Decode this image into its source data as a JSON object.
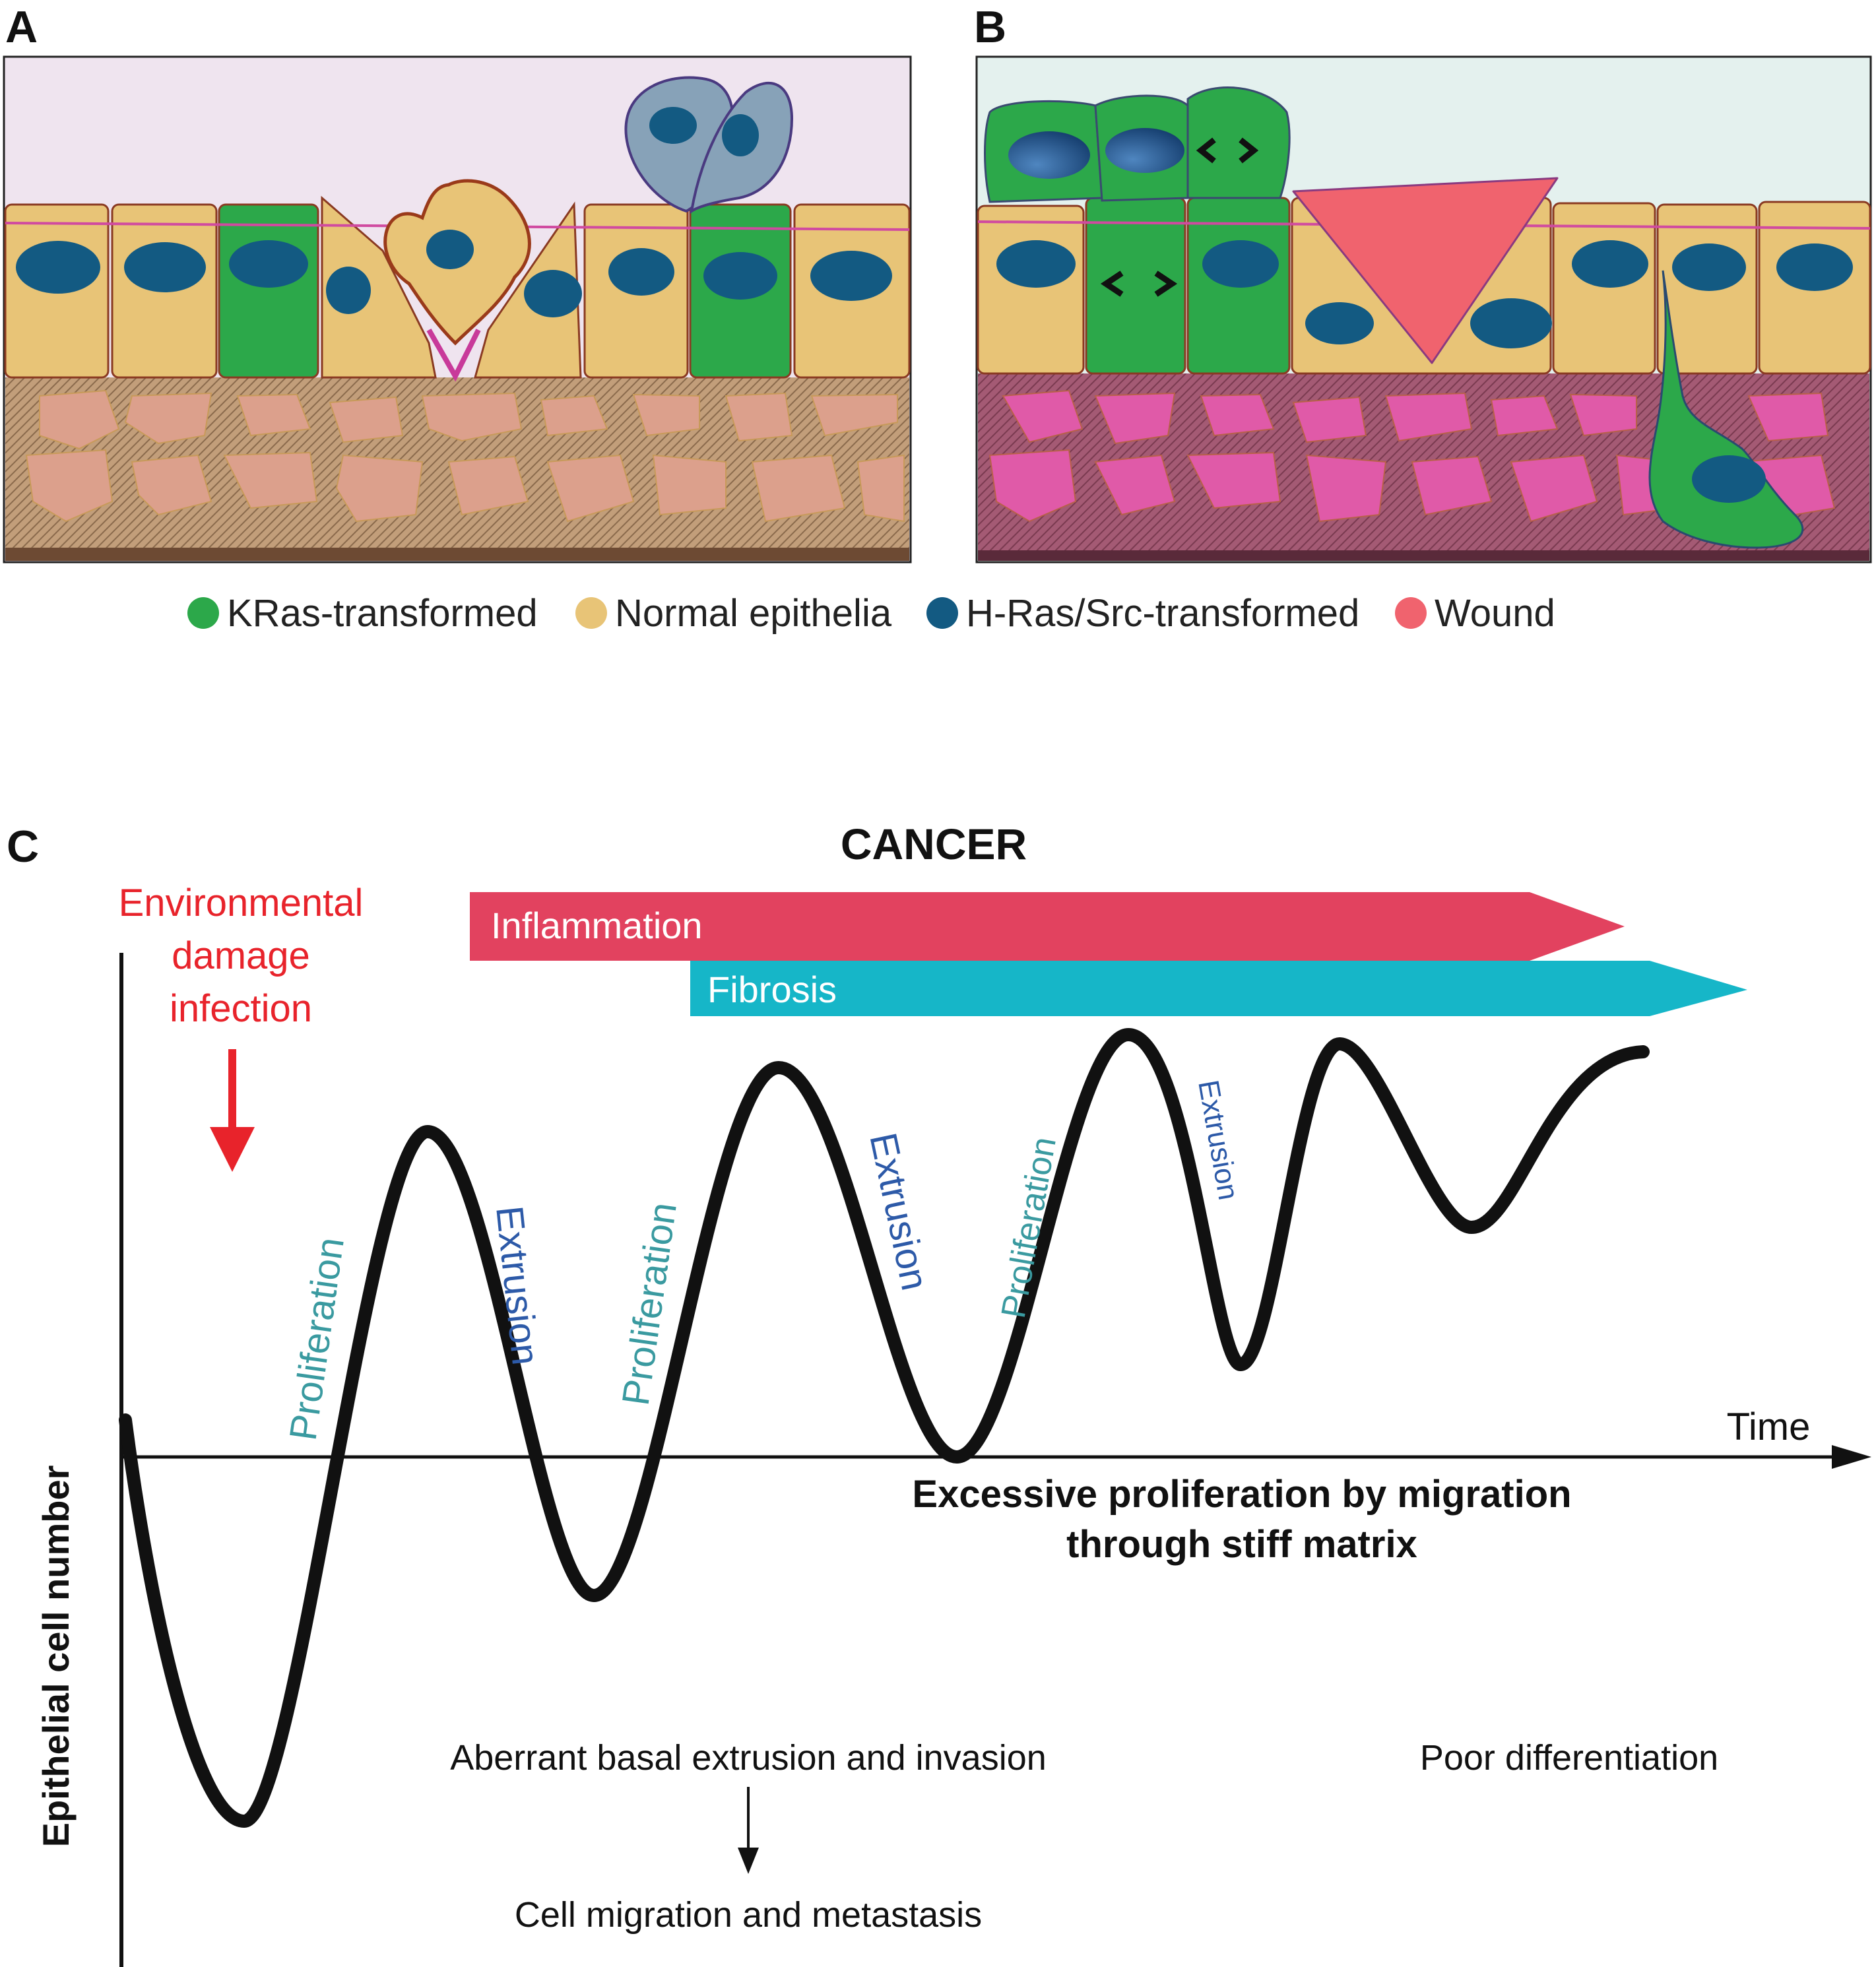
{
  "panels": {
    "a": "A",
    "b": "B",
    "c": "C"
  },
  "legend": [
    {
      "label": "KRas-transformed",
      "color": "#2ca84a"
    },
    {
      "label": "Normal epithelia",
      "color": "#e8c477"
    },
    {
      "label": "H-Ras/Src-transformed",
      "color": "#135a82"
    },
    {
      "label": "Wound",
      "color": "#f0636e"
    }
  ],
  "chart": {
    "title": "CANCER",
    "trigger_line1": "Environmental",
    "trigger_line2": "damage",
    "trigger_line3": "infection",
    "bar_inflammation": "Inflammation",
    "bar_fibrosis": "Fibrosis",
    "proliferation": "Proliferation",
    "extrusion": "Extrusion",
    "x_axis": "Time",
    "y_axis": "Epithelial cell number",
    "note_proliferation_line1": "Excessive proliferation by migration",
    "note_proliferation_line2": "through stiff matrix",
    "note_aberrant": "Aberrant basal extrusion and invasion",
    "note_migration": "Cell migration and metastasis",
    "note_differentiation": "Poor differentiation"
  },
  "colors": {
    "normal": "#e8c477",
    "kras": "#2ca84a",
    "hras": "#135a82",
    "wound": "#f0636e",
    "inflammation": "#e2425f",
    "fibrosis": "#16b6c8",
    "proliferation_text": "#3a9aa0",
    "extrusion_text": "#2d5aa8",
    "trigger_text": "#e8232b"
  }
}
